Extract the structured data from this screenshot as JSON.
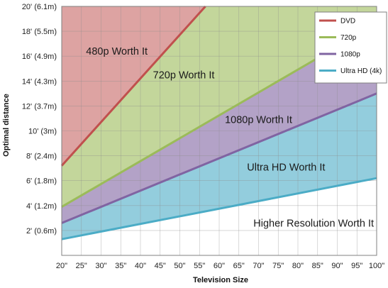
{
  "chart_data": {
    "type": "area",
    "xlabel": "Television Size",
    "ylabel": "Optimal distance",
    "x_unit": "inches",
    "y_unit": "feet",
    "xlim": [
      20,
      100
    ],
    "ylim": [
      0,
      20
    ],
    "grid": true,
    "legend_position": "top-right",
    "x_ticks": [
      "20\"",
      "25\"",
      "30\"",
      "35\"",
      "40\"",
      "45\"",
      "50\"",
      "55\"",
      "60\"",
      "65\"",
      "70\"",
      "75\"",
      "80\"",
      "85\"",
      "90\"",
      "95\"",
      "100\""
    ],
    "y_ticks": [
      {
        "value": 2,
        "label": "2' (0.6m)"
      },
      {
        "value": 4,
        "label": "4' (1.2m)"
      },
      {
        "value": 6,
        "label": "6' (1.8m)"
      },
      {
        "value": 8,
        "label": "8' (2.4m)"
      },
      {
        "value": 10,
        "label": "10' (3m)"
      },
      {
        "value": 12,
        "label": "12' (3.7m)"
      },
      {
        "value": 14,
        "label": "14' (4.3m)"
      },
      {
        "value": 16,
        "label": "16' (4.9m)"
      },
      {
        "value": 18,
        "label": "18' (5.5m)"
      },
      {
        "value": 20,
        "label": "20' (6.1m)"
      }
    ],
    "series": [
      {
        "name": "DVD",
        "color": "#c0504d",
        "fill": "#dda3a2",
        "points": [
          [
            20,
            7.2
          ],
          [
            56.5,
            20
          ]
        ]
      },
      {
        "name": "720p",
        "color": "#9bbb59",
        "fill": "#c3d69b",
        "points": [
          [
            20,
            3.9
          ],
          [
            100,
            18.6
          ]
        ]
      },
      {
        "name": "1080p",
        "color": "#8064a2",
        "fill": "#b3a2c7",
        "points": [
          [
            20,
            2.6
          ],
          [
            100,
            13.0
          ]
        ]
      },
      {
        "name": "Ultra HD (4k)",
        "color": "#4bacc6",
        "fill": "#93cddd",
        "points": [
          [
            20,
            1.3
          ],
          [
            100,
            6.2
          ]
        ]
      }
    ],
    "region_labels": [
      {
        "text": "480p Worth It",
        "x": 34,
        "y": 16.4
      },
      {
        "text": "720p Worth It",
        "x": 51,
        "y": 14.5
      },
      {
        "text": "1080p Worth It",
        "x": 70,
        "y": 10.9
      },
      {
        "text": "Ultra HD Worth It",
        "x": 77,
        "y": 7.1
      },
      {
        "text": "Higher Resolution Worth It",
        "x": 84,
        "y": 2.6
      }
    ]
  }
}
